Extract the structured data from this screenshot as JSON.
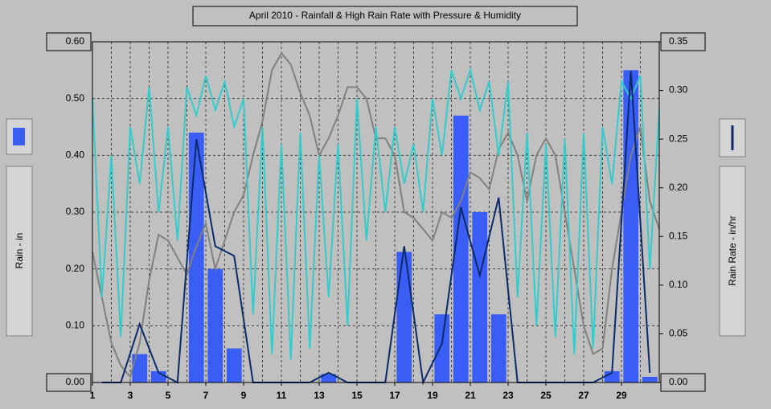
{
  "chart_data": {
    "type": "bar",
    "title": "April 2010 - Rainfall & High Rain Rate with Pressure & Humidity",
    "y_label": "Rain - in",
    "y2_label": "Rain Rate - in/hr",
    "xlim": [
      1,
      31
    ],
    "xticks": [
      1,
      3,
      5,
      7,
      9,
      11,
      13,
      15,
      17,
      19,
      21,
      23,
      25,
      27,
      29
    ],
    "x_minor_ticks": [
      2,
      4,
      6,
      8,
      10,
      12,
      14,
      16,
      18,
      20,
      22,
      24,
      26,
      28,
      30
    ],
    "ylim": [
      0,
      0.6
    ],
    "yticks": [
      {
        "value": 0,
        "label": "0.00"
      },
      {
        "value": 0.1,
        "label": "0.10"
      },
      {
        "value": 0.2,
        "label": "0.20"
      },
      {
        "value": 0.3,
        "label": "0.30"
      },
      {
        "value": 0.4,
        "label": "0.40"
      },
      {
        "value": 0.5,
        "label": "0.50"
      },
      {
        "value": 0.6,
        "label": "0.60"
      }
    ],
    "y2lim": [
      0,
      0.35
    ],
    "y2ticks": [
      {
        "value": 0,
        "label": "0.00"
      },
      {
        "value": 0.05,
        "label": "0.05"
      },
      {
        "value": 0.1,
        "label": "0.10"
      },
      {
        "value": 0.15,
        "label": "0.15"
      },
      {
        "value": 0.2,
        "label": "0.20"
      },
      {
        "value": 0.25,
        "label": "0.25"
      },
      {
        "value": 0.3,
        "label": "0.30"
      },
      {
        "value": 0.35,
        "label": "0.35"
      }
    ],
    "grid": true,
    "series": [
      {
        "kind": "bar",
        "color": "#3a5ef5",
        "x": [
          3.5,
          4.5,
          6.5,
          7.5,
          8.5,
          13.5,
          17.5,
          19.5,
          20.5,
          21.5,
          22.5,
          28.5,
          29.5,
          30.5
        ],
        "values": [
          0.05,
          0.02,
          0.44,
          0.2,
          0.06,
          0.015,
          0.23,
          0.12,
          0.47,
          0.3,
          0.12,
          0.02,
          0.55,
          0.01
        ]
      },
      {
        "kind": "line",
        "color": "#808080",
        "x": [
          1,
          1.5,
          2,
          2.5,
          3,
          3.5,
          4,
          4.5,
          5,
          5.5,
          6,
          6.5,
          7,
          7.5,
          8,
          8.5,
          9,
          9.5,
          10,
          10.5,
          11,
          11.5,
          12,
          12.5,
          13,
          13.5,
          14,
          14.5,
          15,
          15.5,
          16,
          16.5,
          17,
          17.5,
          18,
          18.5,
          19,
          19.5,
          20,
          20.5,
          21,
          21.5,
          22,
          22.5,
          23,
          23.5,
          24,
          24.5,
          25,
          25.5,
          26,
          26.5,
          27,
          27.5,
          28,
          28.5,
          29,
          29.5,
          30,
          30.5,
          31
        ],
        "values": [
          0.23,
          0.15,
          0.07,
          0.03,
          0.01,
          0.07,
          0.18,
          0.26,
          0.25,
          0.22,
          0.19,
          0.24,
          0.28,
          0.2,
          0.25,
          0.3,
          0.33,
          0.4,
          0.46,
          0.55,
          0.58,
          0.56,
          0.51,
          0.47,
          0.4,
          0.43,
          0.47,
          0.52,
          0.52,
          0.5,
          0.43,
          0.43,
          0.4,
          0.3,
          0.29,
          0.27,
          0.25,
          0.3,
          0.29,
          0.32,
          0.37,
          0.36,
          0.34,
          0.41,
          0.44,
          0.4,
          0.32,
          0.4,
          0.43,
          0.4,
          0.3,
          0.2,
          0.1,
          0.05,
          0.06,
          0.2,
          0.3,
          0.4,
          0.45,
          0.32,
          0.27
        ]
      },
      {
        "kind": "line",
        "color": "#33cccc",
        "x": [
          1,
          1.5,
          2,
          2.5,
          3,
          3.5,
          4,
          4.5,
          5,
          5.5,
          6,
          6.5,
          7,
          7.5,
          8,
          8.5,
          9,
          9.5,
          10,
          10.5,
          11,
          11.5,
          12,
          12.5,
          13,
          13.5,
          14,
          14.5,
          15,
          15.5,
          16,
          16.5,
          17,
          17.5,
          18,
          18.5,
          19,
          19.5,
          20,
          20.5,
          21,
          21.5,
          22,
          22.5,
          23,
          23.5,
          24,
          24.5,
          25,
          25.5,
          26,
          26.5,
          27,
          27.5,
          28,
          28.5,
          29,
          29.5,
          30,
          30.5,
          31
        ],
        "values": [
          0.5,
          0.15,
          0.4,
          0.08,
          0.45,
          0.35,
          0.52,
          0.3,
          0.45,
          0.25,
          0.52,
          0.47,
          0.54,
          0.48,
          0.53,
          0.45,
          0.5,
          0.12,
          0.45,
          0.05,
          0.42,
          0.04,
          0.44,
          0.06,
          0.4,
          0.15,
          0.42,
          0.1,
          0.5,
          0.25,
          0.45,
          0.3,
          0.45,
          0.35,
          0.42,
          0.3,
          0.5,
          0.4,
          0.55,
          0.5,
          0.55,
          0.48,
          0.53,
          0.4,
          0.53,
          0.15,
          0.44,
          0.1,
          0.42,
          0.08,
          0.43,
          0.05,
          0.44,
          0.06,
          0.45,
          0.35,
          0.53,
          0.5,
          0.54,
          0.2,
          0.48
        ]
      },
      {
        "kind": "line",
        "axis": "y2",
        "color": "#0a2a6a",
        "x": [
          1.5,
          2.5,
          3.5,
          4.5,
          5.5,
          6.5,
          7.5,
          8.5,
          9.5,
          10.5,
          11.5,
          12.5,
          13.5,
          14.5,
          15.5,
          16.5,
          17.5,
          18.5,
          19.5,
          20.5,
          21.5,
          22.5,
          23.5,
          24.5,
          25.5,
          26.5,
          27.5,
          28.5,
          29.5,
          30.5
        ],
        "values": [
          0,
          0,
          0.06,
          0.01,
          0,
          0.25,
          0.14,
          0.13,
          0,
          0,
          0,
          0,
          0.01,
          0,
          0,
          0,
          0.14,
          0,
          0.04,
          0.18,
          0.11,
          0.19,
          0,
          0,
          0,
          0,
          0,
          0.01,
          0.32,
          0.01
        ]
      }
    ]
  }
}
